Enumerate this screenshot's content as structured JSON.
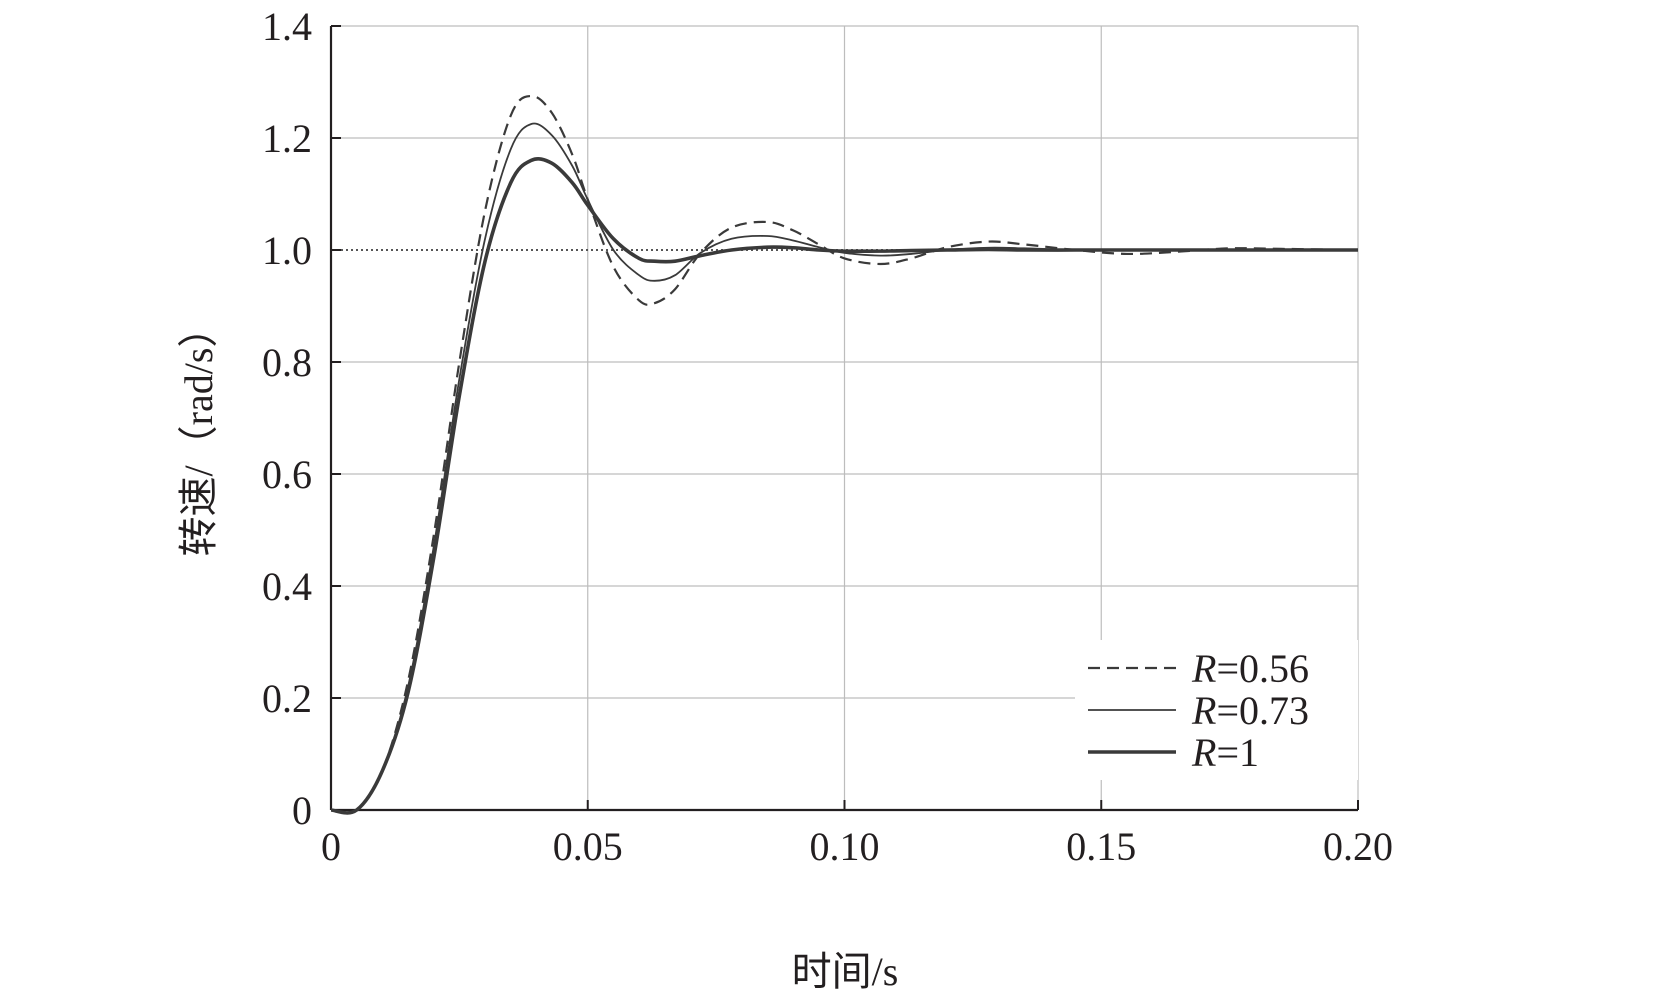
{
  "chart_data": {
    "type": "line",
    "title": "",
    "xlabel": "时间/s",
    "ylabel": "转速/（rad/s）",
    "xlim": [
      0,
      0.2
    ],
    "ylim": [
      0,
      1.4
    ],
    "x_ticks": [
      0,
      0.05,
      0.1,
      0.15,
      0.2
    ],
    "x_tick_labels": [
      "0",
      "0.05",
      "0.10",
      "0.15",
      "0.20"
    ],
    "y_ticks": [
      0,
      0.2,
      0.4,
      0.6,
      0.8,
      1.0,
      1.2,
      1.4
    ],
    "y_tick_labels": [
      "0",
      "0.2",
      "0.4",
      "0.6",
      "0.8",
      "1.0",
      "1.2",
      "1.4"
    ],
    "grid": true,
    "reference_line": {
      "y": 1.0,
      "style": "dotted"
    },
    "legend_position": "bottom-right",
    "x": [
      0,
      0.005,
      0.01,
      0.015,
      0.02,
      0.025,
      0.03,
      0.035,
      0.039,
      0.043,
      0.047,
      0.05,
      0.055,
      0.06,
      0.063,
      0.067,
      0.072,
      0.078,
      0.085,
      0.09,
      0.095,
      0.1,
      0.107,
      0.113,
      0.12,
      0.128,
      0.135,
      0.145,
      0.155,
      0.165,
      0.175,
      0.185,
      0.2
    ],
    "series": [
      {
        "name_prefix": "R",
        "name_value": "=0.56",
        "style": "dashed",
        "color": "#3a3a3a",
        "values": [
          0,
          0.0,
          0.07,
          0.23,
          0.49,
          0.8,
          1.07,
          1.24,
          1.275,
          1.245,
          1.17,
          1.09,
          0.97,
          0.91,
          0.905,
          0.93,
          0.995,
          1.04,
          1.05,
          1.035,
          1.01,
          0.985,
          0.975,
          0.985,
          1.005,
          1.015,
          1.01,
          1.0,
          0.993,
          0.997,
          1.003,
          1.002,
          1.0
        ]
      },
      {
        "name_prefix": "R",
        "name_value": "=0.73",
        "style": "solid-thin",
        "color": "#3a3a3a",
        "values": [
          0,
          0.0,
          0.07,
          0.22,
          0.47,
          0.77,
          1.02,
          1.18,
          1.225,
          1.205,
          1.15,
          1.09,
          1.0,
          0.955,
          0.945,
          0.955,
          0.995,
          1.02,
          1.025,
          1.017,
          1.005,
          0.995,
          0.99,
          0.993,
          1.0,
          1.004,
          1.003,
          1.0,
          0.999,
          1.0,
          1.0,
          1.0,
          1.0
        ]
      },
      {
        "name_prefix": "R",
        "name_value": "=1",
        "style": "solid-thick",
        "color": "#3a3a3a",
        "values": [
          0,
          0.0,
          0.07,
          0.21,
          0.45,
          0.74,
          0.98,
          1.12,
          1.16,
          1.155,
          1.12,
          1.08,
          1.02,
          0.985,
          0.98,
          0.98,
          0.99,
          1.0,
          1.005,
          1.004,
          1.0,
          0.998,
          0.998,
          0.999,
          1.0,
          1.001,
          1.0,
          1.0,
          1.0,
          1.0,
          1.0,
          1.0,
          1.0
        ]
      }
    ]
  }
}
